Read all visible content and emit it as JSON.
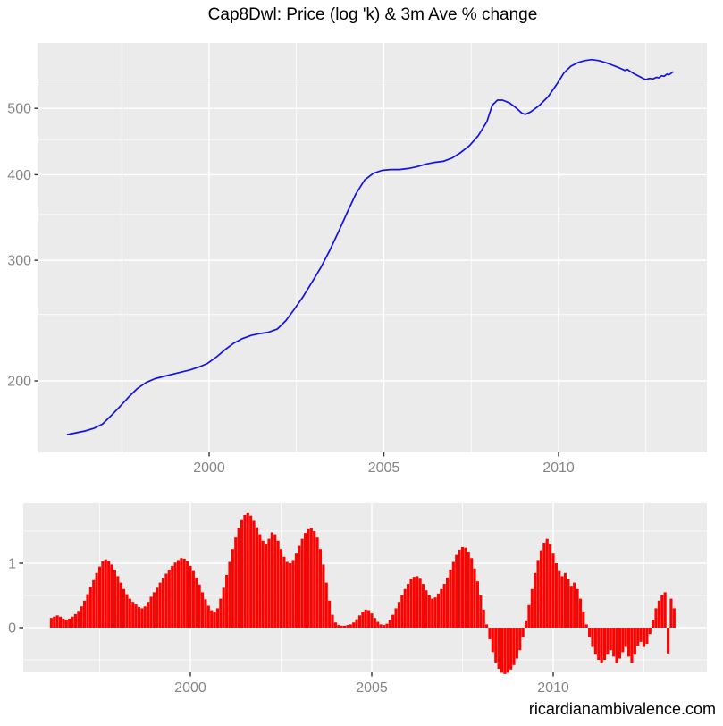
{
  "title": "Cap8Dwl: Price (log 'k) & 3m Ave % change",
  "watermark": "ricardianambivalence.com",
  "colors": {
    "panel_bg": "#EBEBEB",
    "gridline": "#FFFFFF",
    "price_line": "#1212E8",
    "bars": "#FA0300",
    "axis_text": "#858585",
    "tick_mark": "#333333",
    "title_text": "#000000"
  },
  "chart_data": [
    {
      "type": "line",
      "name": "price-log-k",
      "title": "Cap8Dwl: Price (log 'k) & 3m Ave % change",
      "legend_position": "none",
      "grid": true,
      "y_scale": "log10",
      "x_ticks": [
        {
          "v": 2000,
          "label": "2000"
        },
        {
          "v": 2005,
          "label": "2005"
        },
        {
          "v": 2010,
          "label": "2010"
        }
      ],
      "x_minor": [
        1997.5,
        2002.5,
        2007.5,
        2012.5
      ],
      "y_ticks": [
        {
          "v": 200,
          "label": "200"
        },
        {
          "v": 300,
          "label": "300"
        },
        {
          "v": 400,
          "label": "400"
        },
        {
          "v": 500,
          "label": "500"
        }
      ],
      "y_minor": [
        250,
        350,
        450,
        550
      ],
      "x_range": [
        1995.9,
        2013.3
      ],
      "y_range_approx": [
        157,
        620
      ],
      "points": [
        [
          1995.95,
          167
        ],
        [
          1996.2,
          168
        ],
        [
          1996.45,
          169
        ],
        [
          1996.7,
          170.5
        ],
        [
          1996.95,
          173
        ],
        [
          1997.2,
          178
        ],
        [
          1997.45,
          183.5
        ],
        [
          1997.7,
          189.5
        ],
        [
          1997.95,
          195
        ],
        [
          1998.2,
          199
        ],
        [
          1998.45,
          201.5
        ],
        [
          1998.7,
          203
        ],
        [
          1998.95,
          204.5
        ],
        [
          1999.2,
          206
        ],
        [
          1999.45,
          207.5
        ],
        [
          1999.7,
          209.5
        ],
        [
          1999.95,
          212
        ],
        [
          2000.2,
          216.5
        ],
        [
          2000.45,
          222
        ],
        [
          2000.7,
          227
        ],
        [
          2000.95,
          230.5
        ],
        [
          2001.2,
          233
        ],
        [
          2001.45,
          234.5
        ],
        [
          2001.7,
          235.5
        ],
        [
          2001.95,
          238
        ],
        [
          2002.2,
          245
        ],
        [
          2002.45,
          255
        ],
        [
          2002.7,
          266
        ],
        [
          2002.95,
          279
        ],
        [
          2003.2,
          293
        ],
        [
          2003.45,
          310
        ],
        [
          2003.7,
          330
        ],
        [
          2003.95,
          352
        ],
        [
          2004.2,
          375
        ],
        [
          2004.45,
          393
        ],
        [
          2004.7,
          402
        ],
        [
          2004.95,
          406
        ],
        [
          2005.2,
          407
        ],
        [
          2005.45,
          407
        ],
        [
          2005.7,
          408.5
        ],
        [
          2005.95,
          411
        ],
        [
          2006.2,
          414.5
        ],
        [
          2006.45,
          417
        ],
        [
          2006.7,
          418.5
        ],
        [
          2006.95,
          423
        ],
        [
          2007.2,
          431
        ],
        [
          2007.45,
          441
        ],
        [
          2007.7,
          456
        ],
        [
          2007.95,
          478
        ],
        [
          2008.1,
          505
        ],
        [
          2008.25,
          514
        ],
        [
          2008.4,
          514
        ],
        [
          2008.6,
          509
        ],
        [
          2008.8,
          500
        ],
        [
          2008.95,
          492
        ],
        [
          2009.05,
          490
        ],
        [
          2009.2,
          494
        ],
        [
          2009.45,
          505
        ],
        [
          2009.7,
          520
        ],
        [
          2009.95,
          542
        ],
        [
          2010.15,
          563
        ],
        [
          2010.35,
          576
        ],
        [
          2010.55,
          583
        ],
        [
          2010.75,
          587
        ],
        [
          2010.95,
          589
        ],
        [
          2011.15,
          587
        ],
        [
          2011.35,
          583
        ],
        [
          2011.55,
          578
        ],
        [
          2011.7,
          574
        ],
        [
          2011.8,
          571
        ],
        [
          2011.9,
          568
        ],
        [
          2011.97,
          570
        ],
        [
          2012.05,
          566
        ],
        [
          2012.15,
          562
        ],
        [
          2012.3,
          557
        ],
        [
          2012.45,
          552
        ],
        [
          2012.5,
          551
        ],
        [
          2012.6,
          553
        ],
        [
          2012.7,
          552
        ],
        [
          2012.8,
          555
        ],
        [
          2012.87,
          554
        ],
        [
          2012.95,
          558
        ],
        [
          2013.02,
          557
        ],
        [
          2013.1,
          561
        ],
        [
          2013.17,
          560
        ],
        [
          2013.27,
          565
        ]
      ]
    },
    {
      "type": "bar",
      "name": "three-month-ave-pct-change",
      "grid": true,
      "x_ticks": [
        {
          "v": 2000,
          "label": "2000"
        },
        {
          "v": 2005,
          "label": "2005"
        },
        {
          "v": 2010,
          "label": "2010"
        }
      ],
      "x_minor": [
        1997.5,
        2002.5,
        2007.5,
        2012.5
      ],
      "y_ticks": [
        {
          "v": 0,
          "label": "0"
        },
        {
          "v": 1,
          "label": "1"
        }
      ],
      "y_minor": [
        -0.5,
        0.5,
        1.5
      ],
      "start_year": 1996.1667,
      "step_years": 0.083333,
      "values": [
        0.15,
        0.17,
        0.19,
        0.17,
        0.14,
        0.12,
        0.14,
        0.17,
        0.21,
        0.26,
        0.33,
        0.42,
        0.52,
        0.63,
        0.74,
        0.85,
        0.95,
        1.03,
        1.06,
        1.04,
        0.98,
        0.9,
        0.8,
        0.7,
        0.6,
        0.52,
        0.45,
        0.4,
        0.36,
        0.32,
        0.3,
        0.33,
        0.4,
        0.48,
        0.55,
        0.62,
        0.7,
        0.77,
        0.84,
        0.9,
        0.96,
        1.01,
        1.05,
        1.08,
        1.07,
        1.03,
        0.96,
        0.88,
        0.78,
        0.67,
        0.55,
        0.44,
        0.34,
        0.27,
        0.25,
        0.3,
        0.45,
        0.62,
        0.82,
        1.02,
        1.22,
        1.4,
        1.55,
        1.67,
        1.75,
        1.78,
        1.74,
        1.66,
        1.56,
        1.45,
        1.35,
        1.3,
        1.38,
        1.48,
        1.45,
        1.35,
        1.22,
        1.1,
        1.02,
        1.0,
        1.05,
        1.15,
        1.27,
        1.38,
        1.47,
        1.53,
        1.55,
        1.5,
        1.4,
        1.22,
        0.98,
        0.7,
        0.42,
        0.2,
        0.08,
        0.04,
        0.03,
        0.03,
        0.04,
        0.05,
        0.08,
        0.13,
        0.19,
        0.25,
        0.28,
        0.27,
        0.22,
        0.15,
        0.09,
        0.05,
        0.04,
        0.06,
        0.12,
        0.2,
        0.3,
        0.4,
        0.5,
        0.6,
        0.68,
        0.75,
        0.79,
        0.8,
        0.76,
        0.68,
        0.58,
        0.5,
        0.45,
        0.47,
        0.53,
        0.6,
        0.68,
        0.78,
        0.9,
        1.02,
        1.13,
        1.21,
        1.25,
        1.24,
        1.18,
        1.08,
        0.92,
        0.72,
        0.5,
        0.28,
        0.05,
        -0.18,
        -0.38,
        -0.54,
        -0.64,
        -0.7,
        -0.72,
        -0.7,
        -0.65,
        -0.58,
        -0.48,
        -0.35,
        -0.15,
        0.1,
        0.35,
        0.6,
        0.85,
        1.05,
        1.2,
        1.32,
        1.38,
        1.3,
        1.15,
        1.0,
        0.88,
        0.8,
        0.85,
        0.75,
        0.65,
        0.7,
        0.6,
        0.45,
        0.25,
        0.05,
        -0.15,
        -0.3,
        -0.42,
        -0.5,
        -0.55,
        -0.5,
        -0.42,
        -0.35,
        -0.45,
        -0.55,
        -0.48,
        -0.38,
        -0.3,
        -0.45,
        -0.55,
        -0.42,
        -0.28,
        -0.22,
        -0.3,
        -0.25,
        -0.1,
        0.12,
        0.3,
        0.42,
        0.5,
        0.55,
        -0.4,
        0.45,
        0.3
      ]
    }
  ]
}
